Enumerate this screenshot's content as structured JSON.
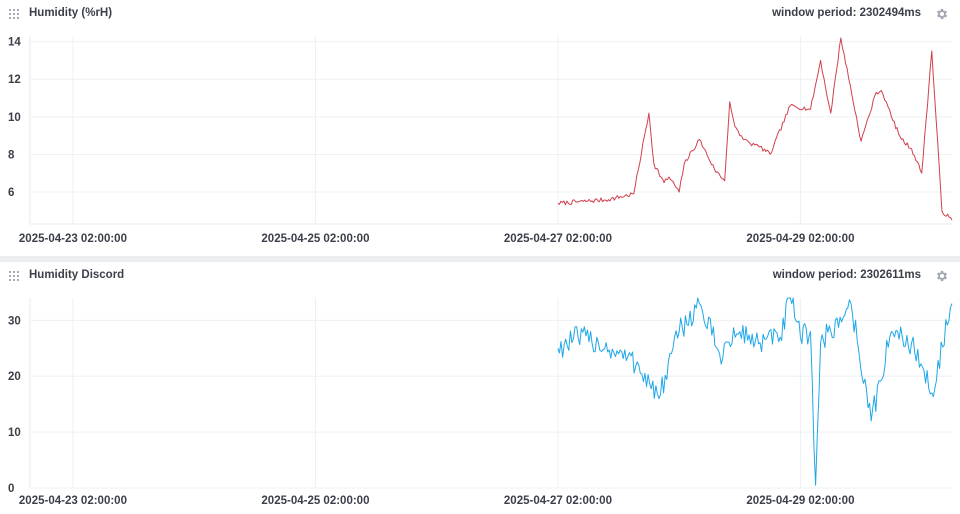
{
  "panels": [
    {
      "title": "Humidity (%rH)",
      "window_period": "window period: 2302494ms",
      "gear_icon": "gear-icon",
      "drag_icon": "drag-handle-icon"
    },
    {
      "title": "Humidity Discord",
      "window_period": "window period: 2302611ms",
      "gear_icon": "gear-icon",
      "drag_icon": "drag-handle-icon"
    }
  ],
  "chart_data": [
    {
      "type": "line",
      "title": "Humidity (%rH)",
      "xlabel": "",
      "ylabel": "",
      "x_ticks": [
        "2025-04-23 02:00:00",
        "2025-04-25 02:00:00",
        "2025-04-27 02:00:00",
        "2025-04-29 02:00:00"
      ],
      "x_range": [
        "2025-04-22 17:30",
        "2025-04-30 08:00"
      ],
      "y_ticks": [
        6,
        8,
        10,
        12,
        14
      ],
      "ylim": [
        4.3,
        14.3
      ],
      "grid": true,
      "legend": "none",
      "color": "#d2404c",
      "series": [
        {
          "x": [
            "2025-04-27 02:00",
            "2025-04-27 07:00",
            "2025-04-27 12:00",
            "2025-04-27 17:00",
            "2025-04-27 20:00",
            "2025-04-27 21:00",
            "2025-04-27 23:00",
            "2025-04-28 00:00",
            "2025-04-28 02:00",
            "2025-04-28 03:00",
            "2025-04-28 06:00",
            "2025-04-28 09:00",
            "2025-04-28 11:00",
            "2025-04-28 12:00",
            "2025-04-28 13:00",
            "2025-04-28 14:00",
            "2025-04-28 15:00",
            "2025-04-28 16:00",
            "2025-04-28 17:00",
            "2025-04-28 18:00",
            "2025-04-28 20:00",
            "2025-04-29 00:00",
            "2025-04-29 04:00",
            "2025-04-29 06:00",
            "2025-04-29 07:00",
            "2025-04-29 08:00",
            "2025-04-29 10:00",
            "2025-04-29 14:00",
            "2025-04-29 17:00",
            "2025-04-29 18:00",
            "2025-04-29 19:00",
            "2025-04-29 20:00",
            "2025-04-29 22:00",
            "2025-04-30 00:00",
            "2025-04-30 02:00",
            "2025-04-30 04:00",
            "2025-04-30 06:00",
            "2025-04-30 08:00"
          ],
          "y": [
            5.4,
            5.5,
            5.6,
            5.9,
            10.2,
            7.5,
            6.5,
            6.8,
            6.0,
            7.5,
            8.8,
            7.2,
            6.6,
            10.8,
            9.5,
            9.0,
            8.8,
            8.6,
            8.5,
            8.4,
            8.0,
            10.6,
            10.4,
            13.0,
            11.5,
            10.2,
            14.2,
            8.7,
            11.3,
            11.4,
            10.8,
            10.0,
            8.8,
            8.3,
            7.0,
            13.5,
            5.0,
            4.5
          ]
        }
      ]
    },
    {
      "type": "line",
      "title": "Humidity Discord",
      "xlabel": "",
      "ylabel": "",
      "x_ticks": [
        "2025-04-23 02:00:00",
        "2025-04-25 02:00:00",
        "2025-04-27 02:00:00",
        "2025-04-29 02:00:00"
      ],
      "x_range": [
        "2025-04-22 17:30",
        "2025-04-30 08:00"
      ],
      "y_ticks": [
        0,
        10,
        20,
        30
      ],
      "ylim": [
        0,
        34
      ],
      "grid": true,
      "legend": "none",
      "color": "#1ea7e8",
      "series": [
        {
          "x": [
            "2025-04-27 02:00",
            "2025-04-27 06:00",
            "2025-04-27 10:00",
            "2025-04-27 14:00",
            "2025-04-27 18:00",
            "2025-04-27 22:00",
            "2025-04-28 02:00",
            "2025-04-28 06:00",
            "2025-04-28 10:00",
            "2025-04-28 14:00",
            "2025-04-28 18:00",
            "2025-04-28 22:00",
            "2025-04-29 00:00",
            "2025-04-29 02:00",
            "2025-04-29 04:00",
            "2025-04-29 05:00",
            "2025-04-29 06:00",
            "2025-04-29 08:00",
            "2025-04-29 12:00",
            "2025-04-29 16:00",
            "2025-04-29 20:00",
            "2025-04-30 00:00",
            "2025-04-30 04:00",
            "2025-04-30 08:00"
          ],
          "y": [
            25,
            27,
            26,
            24,
            22,
            16,
            28,
            33,
            24,
            28,
            26,
            27,
            34,
            27,
            28,
            0.5,
            26,
            28,
            33,
            12,
            28,
            26,
            17,
            33
          ]
        }
      ]
    }
  ]
}
